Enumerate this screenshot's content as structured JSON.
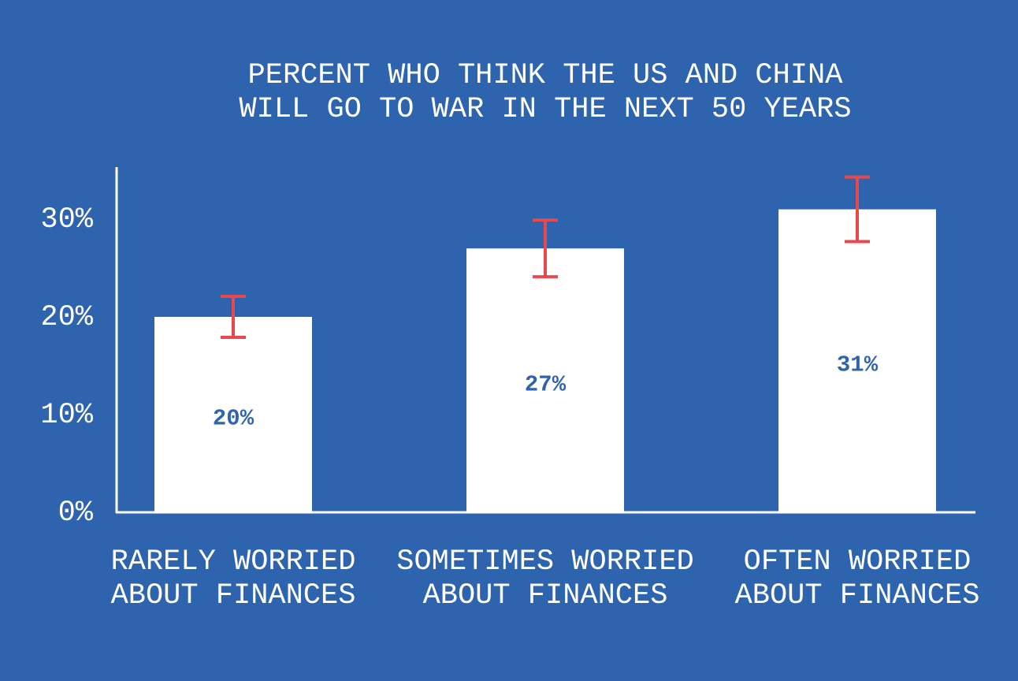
{
  "chart_data": {
    "type": "bar",
    "title": [
      "PERCENT WHO THINK THE US AND CHINA",
      "WILL GO TO WAR IN THE NEXT 50 YEARS"
    ],
    "categories": [
      [
        "RARELY WORRIED",
        "ABOUT FINANCES"
      ],
      [
        "SOMETIMES WORRIED",
        "ABOUT FINANCES"
      ],
      [
        "OFTEN WORRIED",
        "ABOUT FINANCES"
      ]
    ],
    "values": [
      20,
      27,
      31
    ],
    "value_labels": [
      "20%",
      "27%",
      "31%"
    ],
    "errors": [
      2.1,
      2.9,
      3.3
    ],
    "color": "#ffffff",
    "error_color": "#e8484f",
    "label_color": "#2f63ad",
    "ylim": [
      0,
      35
    ],
    "yticks": [
      {
        "value": 0,
        "label": "0%"
      },
      {
        "value": 10,
        "label": "10%"
      },
      {
        "value": 20,
        "label": "20%"
      },
      {
        "value": 30,
        "label": "30%"
      }
    ],
    "grid": false
  }
}
